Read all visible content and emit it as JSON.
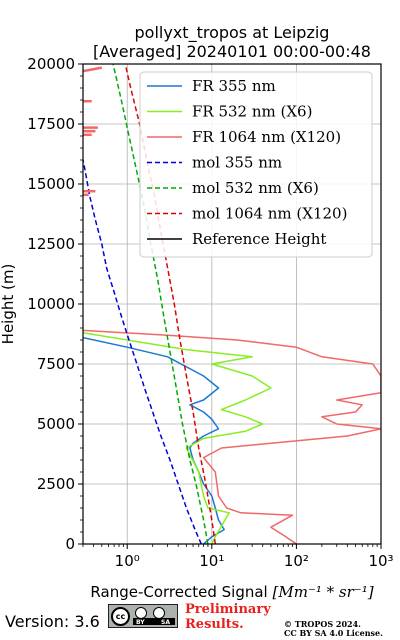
{
  "chart_data": {
    "type": "line",
    "title": [
      "pollyxt_tropos at Leipzig",
      "[Averaged] 20240101 00:00-00:48"
    ],
    "xlabel": "Range-Corrected Signal",
    "xlabel_unit": "[Mm⁻¹ * sr⁻¹]",
    "ylabel": "Height (m)",
    "xscale": "log",
    "xlim": [
      0.3,
      1000
    ],
    "ylim": [
      0,
      20000
    ],
    "grid": true,
    "legend_position": "top-right",
    "x_ticks": [
      "10⁰",
      "10¹",
      "10²",
      "10³"
    ],
    "y_ticks": [
      "0",
      "2500",
      "5000",
      "7500",
      "10000",
      "12500",
      "15000",
      "17500",
      "20000"
    ],
    "series": [
      {
        "name": "FR 355 nm",
        "color": "#1f77d4",
        "style": "solid",
        "points": [
          [
            8,
            0
          ],
          [
            10,
            300
          ],
          [
            14,
            600
          ],
          [
            12,
            1000
          ],
          [
            11,
            1500
          ],
          [
            10,
            2000
          ],
          [
            8,
            2500
          ],
          [
            7,
            3000
          ],
          [
            6,
            3500
          ],
          [
            5.5,
            4000
          ],
          [
            6,
            4200
          ],
          [
            8,
            4500
          ],
          [
            12,
            4800
          ],
          [
            10,
            5200
          ],
          [
            8,
            5500
          ],
          [
            5.5,
            5800
          ],
          [
            8,
            6000
          ],
          [
            12,
            6500
          ],
          [
            8,
            7000
          ],
          [
            3,
            7800
          ],
          [
            1,
            8200
          ],
          [
            0.3,
            8600
          ]
        ]
      },
      {
        "name": "FR 532 nm (X6)",
        "color": "#88ee22",
        "style": "solid",
        "points": [
          [
            10,
            0
          ],
          [
            11,
            300
          ],
          [
            16,
            1300
          ],
          [
            9,
            1500
          ],
          [
            8,
            2000
          ],
          [
            7,
            3000
          ],
          [
            5,
            4000
          ],
          [
            8,
            4400
          ],
          [
            25,
            4700
          ],
          [
            40,
            5000
          ],
          [
            25,
            5300
          ],
          [
            13,
            5600
          ],
          [
            25,
            6000
          ],
          [
            50,
            6500
          ],
          [
            30,
            7000
          ],
          [
            10,
            7500
          ],
          [
            30,
            7800
          ],
          [
            5,
            8100
          ],
          [
            0.3,
            8800
          ]
        ]
      },
      {
        "name": "FR 1064 nm (X120)",
        "color": "#f06868",
        "style": "solid",
        "points": [
          [
            100,
            0
          ],
          [
            75,
            300
          ],
          [
            50,
            700
          ],
          [
            90,
            1200
          ],
          [
            22,
            1300
          ],
          [
            15,
            1500
          ],
          [
            12,
            2000
          ],
          [
            11,
            3000
          ],
          [
            8,
            3600
          ],
          [
            13,
            4000
          ],
          [
            400,
            4500
          ],
          [
            1000,
            4800
          ],
          [
            300,
            5000
          ],
          [
            200,
            5300
          ],
          [
            500,
            5500
          ],
          [
            600,
            5800
          ],
          [
            300,
            6000
          ],
          [
            1000,
            6300
          ],
          [
            1000,
            6600
          ],
          [
            1000,
            7000
          ],
          [
            800,
            7500
          ],
          [
            200,
            7800
          ],
          [
            100,
            8200
          ],
          [
            20,
            8500
          ],
          [
            3,
            8700
          ],
          [
            0.3,
            8900
          ]
        ]
      },
      {
        "name": "mol 355 nm",
        "color": "#0000dd",
        "style": "dashed",
        "points": [
          [
            7.5,
            0
          ],
          [
            6.5,
            500
          ],
          [
            5,
            1500
          ],
          [
            4,
            2500
          ],
          [
            3.2,
            3500
          ],
          [
            2.5,
            4500
          ],
          [
            2,
            5500
          ],
          [
            1.6,
            6500
          ],
          [
            1.3,
            7500
          ],
          [
            1.05,
            8500
          ],
          [
            0.85,
            9500
          ],
          [
            0.7,
            10500
          ],
          [
            0.57,
            11500
          ],
          [
            0.5,
            12500
          ],
          [
            0.42,
            13500
          ],
          [
            0.36,
            14500
          ],
          [
            0.32,
            15500
          ],
          [
            0.3,
            16000
          ]
        ]
      },
      {
        "name": "mol 532 nm (X6)",
        "color": "#00aa00",
        "style": "dashed",
        "points": [
          [
            9,
            0
          ],
          [
            8,
            1000
          ],
          [
            6.5,
            2500
          ],
          [
            5.5,
            3500
          ],
          [
            4.5,
            5000
          ],
          [
            3.8,
            6500
          ],
          [
            3.2,
            8000
          ],
          [
            2.7,
            9500
          ],
          [
            2.3,
            11000
          ],
          [
            1.9,
            12500
          ],
          [
            1.6,
            14000
          ],
          [
            1.3,
            15500
          ],
          [
            1.05,
            17000
          ],
          [
            0.85,
            18500
          ],
          [
            0.68,
            20000
          ]
        ]
      },
      {
        "name": "mol 1064 nm (X120)",
        "color": "#e00000",
        "style": "dashed",
        "points": [
          [
            11,
            0
          ],
          [
            10,
            1000
          ],
          [
            8.5,
            2500
          ],
          [
            7,
            4000
          ],
          [
            6,
            5500
          ],
          [
            5,
            7000
          ],
          [
            4.2,
            8500
          ],
          [
            3.6,
            10000
          ],
          [
            3,
            11500
          ],
          [
            2.5,
            13000
          ],
          [
            2.1,
            14500
          ],
          [
            1.7,
            16000
          ],
          [
            1.4,
            17500
          ],
          [
            1.1,
            19000
          ],
          [
            0.95,
            20000
          ]
        ]
      },
      {
        "name": "Reference Height",
        "color": "#000000",
        "style": "solid",
        "points": []
      }
    ],
    "fr1064_isolated_segments": [
      [
        [
          0.3,
          18450
        ],
        [
          0.38,
          18450
        ]
      ],
      [
        [
          0.3,
          17350
        ],
        [
          0.45,
          17350
        ]
      ],
      [
        [
          0.3,
          17200
        ],
        [
          0.42,
          17200
        ]
      ],
      [
        [
          0.3,
          17050
        ],
        [
          0.38,
          17050
        ]
      ],
      [
        [
          0.3,
          14700
        ],
        [
          0.42,
          14700
        ]
      ],
      [
        [
          0.3,
          14550
        ],
        [
          0.35,
          14550
        ]
      ],
      [
        [
          0.3,
          19700
        ],
        [
          0.5,
          19850
        ]
      ]
    ]
  },
  "footer": {
    "version": "Version: 3.6",
    "license_badge": [
      "BY",
      "SA"
    ],
    "preliminary": [
      "Preliminary",
      "Results."
    ],
    "copyright": [
      "© TROPOS 2024.",
      "CC BY SA 4.0 License."
    ]
  }
}
